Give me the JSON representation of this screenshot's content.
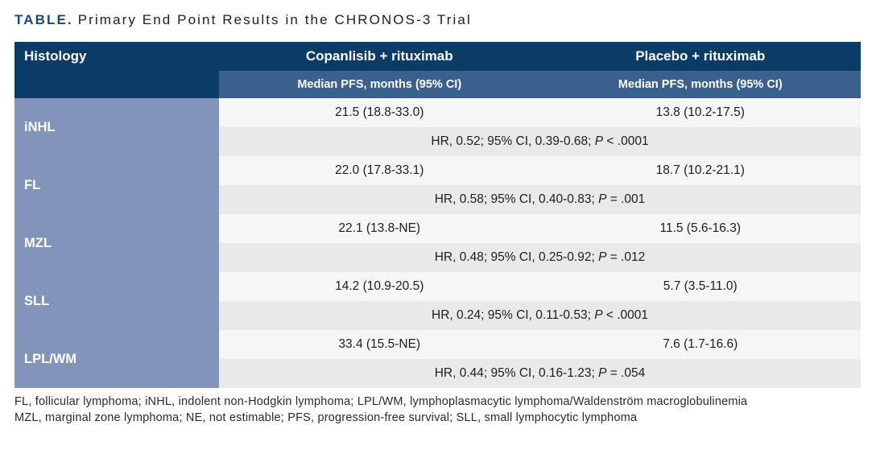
{
  "title": {
    "label": "TABLE.",
    "text": "Primary End Point Results in the CHRONOS-3 Trial"
  },
  "colors": {
    "header_navy": "#0b3b67",
    "subheader_blue": "#3a618e",
    "histology_blue": "#8294ba",
    "value_row": "#f5f6f6",
    "hr_row": "#e8e9eb",
    "title_navy": "#1a4a7c"
  },
  "table": {
    "headers": {
      "histology": "Histology",
      "arm1": "Copanlisib + rituximab",
      "arm2": "Placebo + rituximab"
    },
    "subheaders": {
      "arm1": "Median PFS, months (95% CI)",
      "arm2": "Median PFS, months (95% CI)"
    },
    "groups": [
      {
        "histology": "iNHL",
        "arm1": "21.5 (18.8-33.0)",
        "arm2": "13.8 (10.2-17.5)",
        "hr": {
          "prefix": "HR, 0.52; 95% CI, 0.39-0.68; ",
          "p": "P",
          "rest": " < .0001"
        }
      },
      {
        "histology": "FL",
        "arm1": "22.0 (17.8-33.1)",
        "arm2": "18.7 (10.2-21.1)",
        "hr": {
          "prefix": "HR, 0.58; 95% CI, 0.40-0.83; ",
          "p": "P",
          "rest": " = .001"
        }
      },
      {
        "histology": "MZL",
        "arm1": "22.1 (13.8-NE)",
        "arm2": "11.5 (5.6-16.3)",
        "hr": {
          "prefix": "HR, 0.48; 95% CI, 0.25-0.92; ",
          "p": "P",
          "rest": " = .012"
        }
      },
      {
        "histology": "SLL",
        "arm1": "14.2 (10.9-20.5)",
        "arm2": "5.7 (3.5-11.0)",
        "hr": {
          "prefix": "HR, 0.24; 95% CI, 0.11-0.53; ",
          "p": "P",
          "rest": " < .0001"
        }
      },
      {
        "histology": "LPL/WM",
        "arm1": "33.4 (15.5-NE)",
        "arm2": "7.6 (1.7-16.6)",
        "hr": {
          "prefix": "HR, 0.44; 95% CI, 0.16-1.23; ",
          "p": "P",
          "rest": " = .054"
        }
      }
    ]
  },
  "footnotes": {
    "line1": "FL, follicular lymphoma; iNHL, indolent non-Hodgkin lymphoma; LPL/WM, lymphoplasmacytic lymphoma/Waldenström macroglobulinemia",
    "line2": "MZL, marginal zone lymphoma; NE, not estimable; PFS, progression-free survival; SLL, small lymphocytic lymphoma"
  }
}
